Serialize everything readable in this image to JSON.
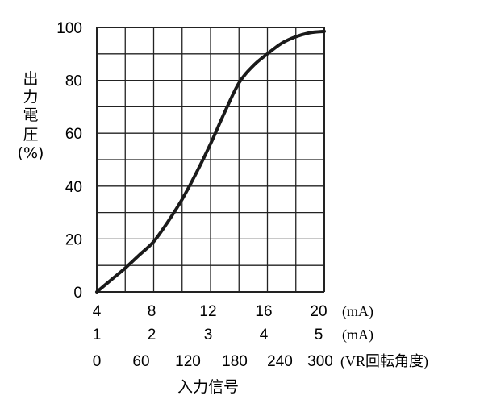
{
  "chart_data": {
    "type": "line",
    "title": "",
    "ylabel_chars": [
      "出",
      "力",
      "電",
      "圧",
      "(%)"
    ],
    "ylabel": "出力電圧(%)",
    "xlabel": "入力信号",
    "xlim": [
      4,
      20
    ],
    "ylim": [
      0,
      100
    ],
    "grid": true,
    "y_ticks": [
      "0",
      "20",
      "40",
      "60",
      "80",
      "100"
    ],
    "y_tick_values": [
      0,
      20,
      40,
      60,
      80,
      100
    ],
    "x_axes": [
      {
        "ticks": [
          "4",
          "8",
          "12",
          "16",
          "20"
        ],
        "values": [
          4,
          8,
          12,
          16,
          20
        ],
        "unit": "(mA)"
      },
      {
        "ticks": [
          "1",
          "2",
          "3",
          "4",
          "5"
        ],
        "values": [
          1,
          2,
          3,
          4,
          5
        ],
        "unit": "(mA)"
      },
      {
        "ticks": [
          "0",
          "60",
          "120",
          "180",
          "240",
          "300"
        ],
        "values": [
          0,
          60,
          120,
          180,
          240,
          300
        ],
        "unit": "(VR回転角度)"
      }
    ],
    "series": [
      {
        "name": "出力電圧",
        "color": "#1a1a1a",
        "x": [
          4,
          5,
          6,
          7,
          8,
          9,
          10,
          11,
          12,
          13,
          14,
          15,
          16,
          17,
          18,
          19,
          20
        ],
        "y": [
          0,
          4.5,
          9,
          14,
          19,
          26.5,
          35,
          45,
          56,
          68,
          79,
          85.5,
          90,
          94,
          96.5,
          98,
          98.5
        ]
      }
    ]
  }
}
